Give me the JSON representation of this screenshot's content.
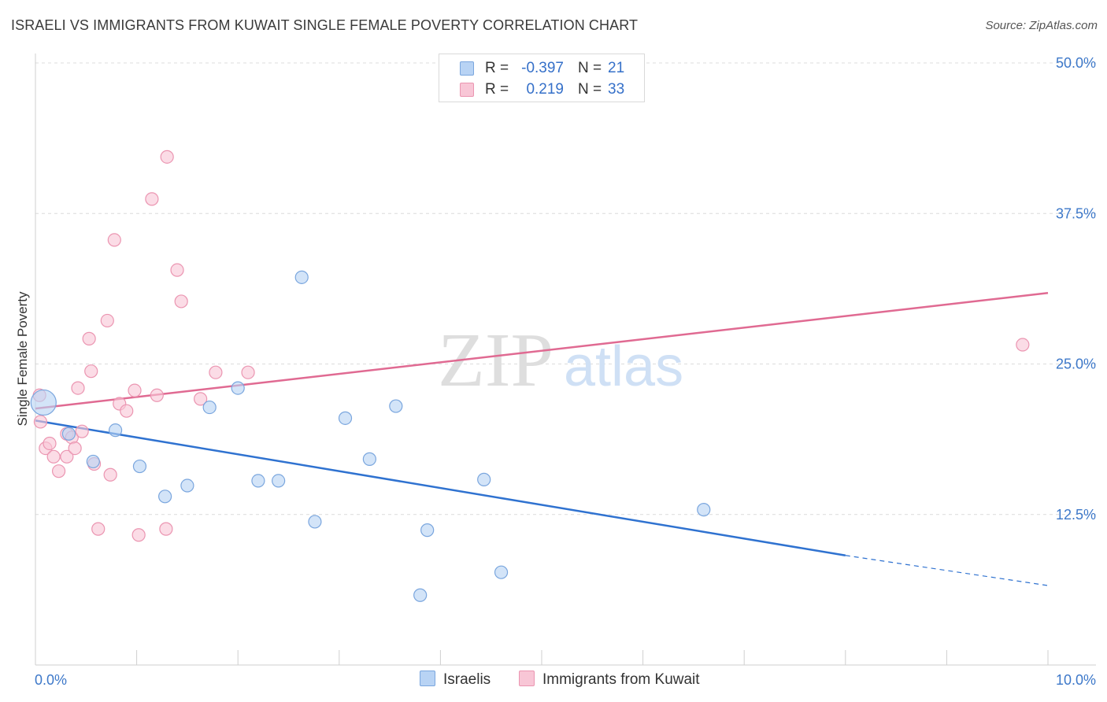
{
  "header": {
    "title": "ISRAELI VS IMMIGRANTS FROM KUWAIT SINGLE FEMALE POVERTY CORRELATION CHART",
    "source": "Source: ZipAtlas.com"
  },
  "watermark": {
    "zip": "ZIP",
    "atlas": "atlas"
  },
  "legend": {
    "rows": [
      {
        "r_label": "R =",
        "r_value": "-0.397",
        "n_label": "N =",
        "n_value": "21"
      },
      {
        "r_label": "R =",
        "r_value": "0.219",
        "n_label": "N =",
        "n_value": "33"
      }
    ]
  },
  "colors": {
    "blue_fill": "#b8d3f4",
    "blue_stroke": "#7aa6de",
    "blue_line": "#2f72d0",
    "pink_fill": "#f8c6d6",
    "pink_stroke": "#eb95b1",
    "pink_line": "#e06a92",
    "axis_label": "#3d78c9",
    "grid": "#dcdcdc"
  },
  "chart_data": {
    "type": "scatter",
    "title": "ISRAELI VS IMMIGRANTS FROM KUWAIT SINGLE FEMALE POVERTY CORRELATION CHART",
    "xlabel": "",
    "ylabel": "Single Female Poverty",
    "xlim": [
      0,
      10
    ],
    "ylim": [
      0,
      52.5
    ],
    "x_tick_labels": [
      "0.0%",
      "10.0%"
    ],
    "y_ticks": [
      12.5,
      25.0,
      37.5,
      50.0
    ],
    "y_tick_labels": [
      "12.5%",
      "25.0%",
      "37.5%",
      "50.0%"
    ],
    "grid": true,
    "legend_position": "bottom-center",
    "series": [
      {
        "name": "Israelis",
        "color": "#b8d3f4",
        "points": [
          [
            0.08,
            21.8,
            "large"
          ],
          [
            0.33,
            19.2
          ],
          [
            0.57,
            16.9
          ],
          [
            0.79,
            19.5
          ],
          [
            1.03,
            16.5
          ],
          [
            1.28,
            14.0
          ],
          [
            1.5,
            14.9
          ],
          [
            1.72,
            21.4
          ],
          [
            2.0,
            23.0
          ],
          [
            2.2,
            15.3
          ],
          [
            2.4,
            15.3
          ],
          [
            2.63,
            32.2
          ],
          [
            2.76,
            11.9
          ],
          [
            3.06,
            20.5
          ],
          [
            3.3,
            17.1
          ],
          [
            3.56,
            21.5
          ],
          [
            3.8,
            5.8
          ],
          [
            3.87,
            11.2
          ],
          [
            4.43,
            15.4
          ],
          [
            4.6,
            7.7
          ],
          [
            6.6,
            12.9
          ]
        ],
        "trend": {
          "x": [
            0,
            8.0
          ],
          "y": [
            20.3,
            9.1
          ],
          "dashed_to": [
            10.0,
            6.6
          ]
        }
      },
      {
        "name": "Immigrants from Kuwait",
        "color": "#f8c6d6",
        "points": [
          [
            0.05,
            20.2
          ],
          [
            0.1,
            18.0
          ],
          [
            0.14,
            18.4
          ],
          [
            0.18,
            17.3
          ],
          [
            0.23,
            16.1
          ],
          [
            0.31,
            19.2
          ],
          [
            0.31,
            17.3
          ],
          [
            0.36,
            18.9
          ],
          [
            0.39,
            18.0
          ],
          [
            0.42,
            23.0
          ],
          [
            0.46,
            19.4
          ],
          [
            0.53,
            27.1
          ],
          [
            0.55,
            24.4
          ],
          [
            0.58,
            16.7
          ],
          [
            0.62,
            11.3
          ],
          [
            0.71,
            28.6
          ],
          [
            0.74,
            15.8
          ],
          [
            0.78,
            35.3
          ],
          [
            0.83,
            21.7
          ],
          [
            0.9,
            21.1
          ],
          [
            0.98,
            22.8
          ],
          [
            1.02,
            10.8
          ],
          [
            1.15,
            38.7
          ],
          [
            1.2,
            22.4
          ],
          [
            1.29,
            11.3
          ],
          [
            1.3,
            42.2
          ],
          [
            1.4,
            32.8
          ],
          [
            1.44,
            30.2
          ],
          [
            1.63,
            22.1
          ],
          [
            1.78,
            24.3
          ],
          [
            2.1,
            24.3
          ],
          [
            9.75,
            26.6
          ],
          [
            0.04,
            22.4
          ]
        ],
        "trend": {
          "x": [
            0,
            10.0
          ],
          "y": [
            21.3,
            30.9
          ]
        }
      }
    ]
  },
  "bottom_legend": {
    "israelis": "Israelis",
    "kuwait": "Immigrants from Kuwait"
  }
}
